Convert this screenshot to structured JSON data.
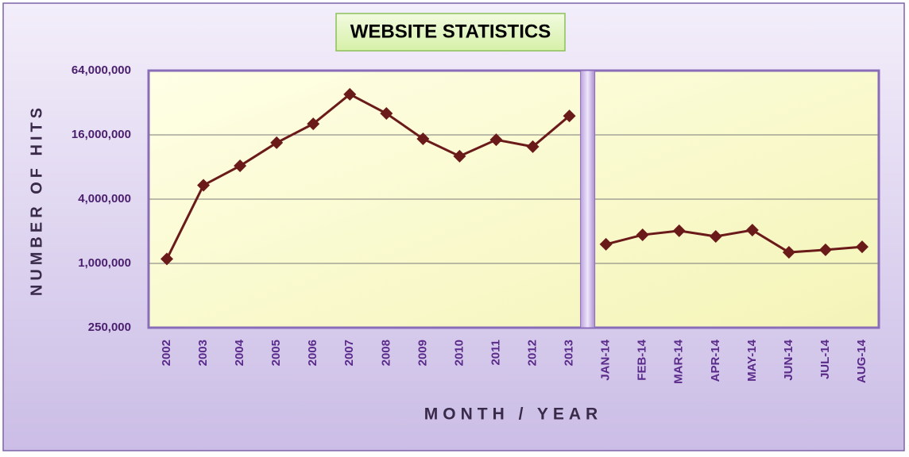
{
  "chart_data": {
    "type": "line",
    "title": "WEBSITE STATISTICS",
    "x_label": "MONTH / YEAR",
    "y_label": "NUMBER OF HITS",
    "categories": [
      "2002",
      "2003",
      "2004",
      "2005",
      "2006",
      "2007",
      "2008",
      "2009",
      "2010",
      "2011",
      "2012",
      "2013",
      "JAN-14",
      "FEB-14",
      "MAR-14",
      "APR-14",
      "MAY-14",
      "JUN-14",
      "JUL-14",
      "AUG-14"
    ],
    "series": [
      {
        "color": "#6b1a1a",
        "values": [
          1100000,
          5400000,
          8200000,
          13500000,
          20300000,
          38400000,
          25400000,
          14700000,
          10100000,
          14400000,
          12400000,
          24100000,
          null,
          null,
          null,
          null,
          null,
          null,
          null,
          null
        ]
      },
      {
        "color": "#6b1a1a",
        "values": [
          null,
          null,
          null,
          null,
          null,
          null,
          null,
          null,
          null,
          null,
          null,
          null,
          1510000,
          1850000,
          2020000,
          1790000,
          2050000,
          1270000,
          1340000,
          1430000
        ]
      }
    ],
    "yscale": "log",
    "ylim": [
      250000,
      64000000
    ],
    "yticks": [
      {
        "value": 250000,
        "label": "250,000"
      },
      {
        "value": 1000000,
        "label": "1,000,000"
      },
      {
        "value": 4000000,
        "label": "4,000,000"
      },
      {
        "value": 16000000,
        "label": "16,000,000"
      },
      {
        "value": 64000000,
        "label": "64,000,000"
      }
    ],
    "grid": true
  }
}
